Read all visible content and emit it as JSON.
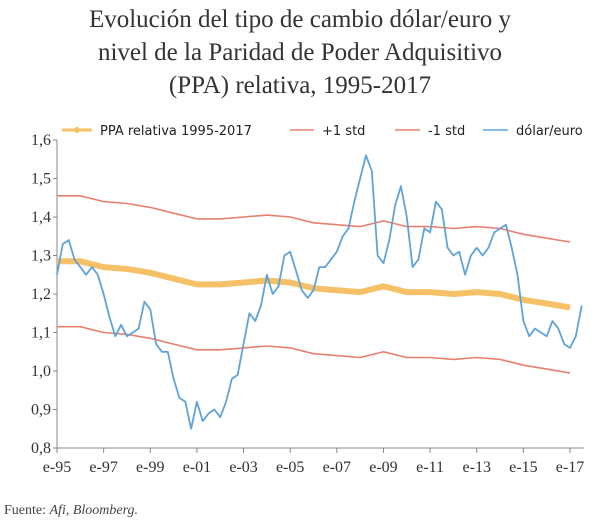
{
  "chart_data": {
    "type": "line",
    "title": [
      "Evolución del tipo de cambio dólar/euro y",
      "nivel de la Paridad de Poder Adquisitivo",
      "(PPA) relativa, 1995-2017"
    ],
    "source_label": "Fuente:",
    "source": "Afi, Bloomberg.",
    "xlim": [
      1995,
      2017.6
    ],
    "xticks": [
      {
        "value": 1995,
        "label": "e-95"
      },
      {
        "value": 1997,
        "label": "e-97"
      },
      {
        "value": 1999,
        "label": "e-99"
      },
      {
        "value": 2001,
        "label": "e-01"
      },
      {
        "value": 2003,
        "label": "e-03"
      },
      {
        "value": 2005,
        "label": "e-05"
      },
      {
        "value": 2007,
        "label": "e-07"
      },
      {
        "value": 2009,
        "label": "e-09"
      },
      {
        "value": 2011,
        "label": "e-11"
      },
      {
        "value": 2013,
        "label": "e-13"
      },
      {
        "value": 2015,
        "label": "e-15"
      },
      {
        "value": 2017,
        "label": "e-17"
      }
    ],
    "ylim": [
      0.8,
      1.6
    ],
    "yticks": [
      {
        "value": 0.8,
        "label": "0,8"
      },
      {
        "value": 0.9,
        "label": "0,9"
      },
      {
        "value": 1.0,
        "label": "1,0"
      },
      {
        "value": 1.1,
        "label": "1,1"
      },
      {
        "value": 1.2,
        "label": "1,2"
      },
      {
        "value": 1.3,
        "label": "1,3"
      },
      {
        "value": 1.4,
        "label": "1,4"
      },
      {
        "value": 1.5,
        "label": "1,5"
      },
      {
        "value": 1.6,
        "label": "1,6"
      }
    ],
    "series": [
      {
        "name": "PPA relativa 1995-2017",
        "color": "#f5c066",
        "x": [
          1995,
          1996,
          1997,
          1998,
          1999,
          2000,
          2001,
          2002,
          2003,
          2004,
          2005,
          2006,
          2007,
          2008,
          2009,
          2010,
          2011,
          2012,
          2013,
          2014,
          2015,
          2016,
          2017
        ],
        "values": [
          1.285,
          1.285,
          1.27,
          1.265,
          1.255,
          1.24,
          1.225,
          1.225,
          1.23,
          1.235,
          1.23,
          1.215,
          1.21,
          1.205,
          1.22,
          1.205,
          1.205,
          1.2,
          1.205,
          1.2,
          1.185,
          1.175,
          1.165
        ]
      },
      {
        "name": "+1 std",
        "color": "#e8806f",
        "x": [
          1995,
          1996,
          1997,
          1998,
          1999,
          2000,
          2001,
          2002,
          2003,
          2004,
          2005,
          2006,
          2007,
          2008,
          2009,
          2010,
          2011,
          2012,
          2013,
          2014,
          2015,
          2016,
          2017
        ],
        "values": [
          1.455,
          1.455,
          1.44,
          1.435,
          1.425,
          1.41,
          1.395,
          1.395,
          1.4,
          1.405,
          1.4,
          1.385,
          1.38,
          1.375,
          1.39,
          1.375,
          1.375,
          1.37,
          1.375,
          1.37,
          1.355,
          1.345,
          1.335
        ]
      },
      {
        "name": "-1 std",
        "color": "#e8806f",
        "x": [
          1995,
          1996,
          1997,
          1998,
          1999,
          2000,
          2001,
          2002,
          2003,
          2004,
          2005,
          2006,
          2007,
          2008,
          2009,
          2010,
          2011,
          2012,
          2013,
          2014,
          2015,
          2016,
          2017
        ],
        "values": [
          1.115,
          1.115,
          1.1,
          1.095,
          1.085,
          1.07,
          1.055,
          1.055,
          1.06,
          1.065,
          1.06,
          1.045,
          1.04,
          1.035,
          1.05,
          1.035,
          1.035,
          1.03,
          1.035,
          1.03,
          1.015,
          1.005,
          0.995
        ]
      },
      {
        "name": "dólar/euro",
        "color": "#5fa3d8",
        "x": [
          1995,
          1995.25,
          1995.5,
          1995.75,
          1996,
          1996.25,
          1996.5,
          1996.75,
          1997,
          1997.25,
          1997.5,
          1997.75,
          1998,
          1998.25,
          1998.5,
          1998.75,
          1999,
          1999.25,
          1999.5,
          1999.75,
          2000,
          2000.25,
          2000.5,
          2000.75,
          2001,
          2001.25,
          2001.5,
          2001.75,
          2002,
          2002.25,
          2002.5,
          2002.75,
          2003,
          2003.25,
          2003.5,
          2003.75,
          2004,
          2004.25,
          2004.5,
          2004.75,
          2005,
          2005.25,
          2005.5,
          2005.75,
          2006,
          2006.25,
          2006.5,
          2006.75,
          2007,
          2007.25,
          2007.5,
          2007.75,
          2008,
          2008.25,
          2008.5,
          2008.75,
          2009,
          2009.25,
          2009.5,
          2009.75,
          2010,
          2010.25,
          2010.5,
          2010.75,
          2011,
          2011.25,
          2011.5,
          2011.75,
          2012,
          2012.25,
          2012.5,
          2012.75,
          2013,
          2013.25,
          2013.5,
          2013.75,
          2014,
          2014.25,
          2014.5,
          2014.75,
          2015,
          2015.25,
          2015.5,
          2015.75,
          2016,
          2016.25,
          2016.5,
          2016.75,
          2017,
          2017.25,
          2017.5
        ],
        "values": [
          1.25,
          1.33,
          1.34,
          1.29,
          1.27,
          1.25,
          1.27,
          1.25,
          1.2,
          1.14,
          1.09,
          1.12,
          1.09,
          1.1,
          1.11,
          1.18,
          1.16,
          1.07,
          1.05,
          1.05,
          0.98,
          0.93,
          0.92,
          0.85,
          0.92,
          0.87,
          0.89,
          0.9,
          0.88,
          0.92,
          0.98,
          0.99,
          1.07,
          1.15,
          1.13,
          1.17,
          1.25,
          1.2,
          1.22,
          1.3,
          1.31,
          1.26,
          1.21,
          1.19,
          1.21,
          1.27,
          1.27,
          1.29,
          1.31,
          1.35,
          1.37,
          1.44,
          1.5,
          1.56,
          1.52,
          1.3,
          1.28,
          1.34,
          1.43,
          1.48,
          1.4,
          1.27,
          1.29,
          1.37,
          1.36,
          1.44,
          1.42,
          1.32,
          1.3,
          1.31,
          1.25,
          1.3,
          1.32,
          1.3,
          1.32,
          1.36,
          1.37,
          1.38,
          1.32,
          1.25,
          1.13,
          1.09,
          1.11,
          1.1,
          1.09,
          1.13,
          1.11,
          1.07,
          1.06,
          1.09,
          1.17
        ]
      }
    ]
  }
}
